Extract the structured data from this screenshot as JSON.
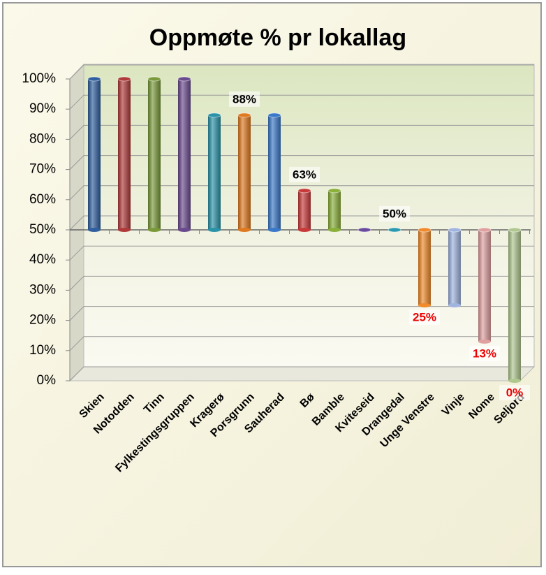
{
  "chart_data": {
    "type": "bar",
    "title": "Oppmøte % pr lokallag",
    "categories": [
      "Skien",
      "Notodden",
      "Tinn",
      "Fylkestingsgruppen",
      "Kragerø",
      "Porsgrunn",
      "Sauherad",
      "Bø",
      "Bamble",
      "Kviteseid",
      "Drangedal",
      "Unge Venstre",
      "Vinje",
      "Nome",
      "Seljord"
    ],
    "values": [
      100,
      100,
      100,
      100,
      88,
      88,
      88,
      63,
      63,
      50,
      50,
      25,
      25,
      13,
      0
    ],
    "value_labels": [
      null,
      null,
      null,
      null,
      null,
      "88%",
      null,
      "63%",
      null,
      null,
      "50%",
      "25%",
      null,
      "13%",
      "0%"
    ],
    "colors": [
      "#2f5f9e",
      "#b03a3a",
      "#7a9a3a",
      "#6a4a8e",
      "#2a93a8",
      "#e07a20",
      "#3a78c8",
      "#c83a3a",
      "#8ab03a",
      "#6a4a9e",
      "#2a9ab0",
      "#f08a2a",
      "#a0b4e0",
      "#e0a0a0",
      "#b0c890"
    ],
    "base": 50,
    "ylim": [
      0,
      100
    ],
    "yticks": [
      {
        "value": 0,
        "label": "0%"
      },
      {
        "value": 10,
        "label": "10%"
      },
      {
        "value": 20,
        "label": "20%"
      },
      {
        "value": 30,
        "label": "30%"
      },
      {
        "value": 40,
        "label": "40%"
      },
      {
        "value": 50,
        "label": "50%"
      },
      {
        "value": 60,
        "label": "60%"
      },
      {
        "value": 70,
        "label": "70%"
      },
      {
        "value": 80,
        "label": "80%"
      },
      {
        "value": 90,
        "label": "90%"
      },
      {
        "value": 100,
        "label": "100%"
      }
    ],
    "grid": true
  }
}
